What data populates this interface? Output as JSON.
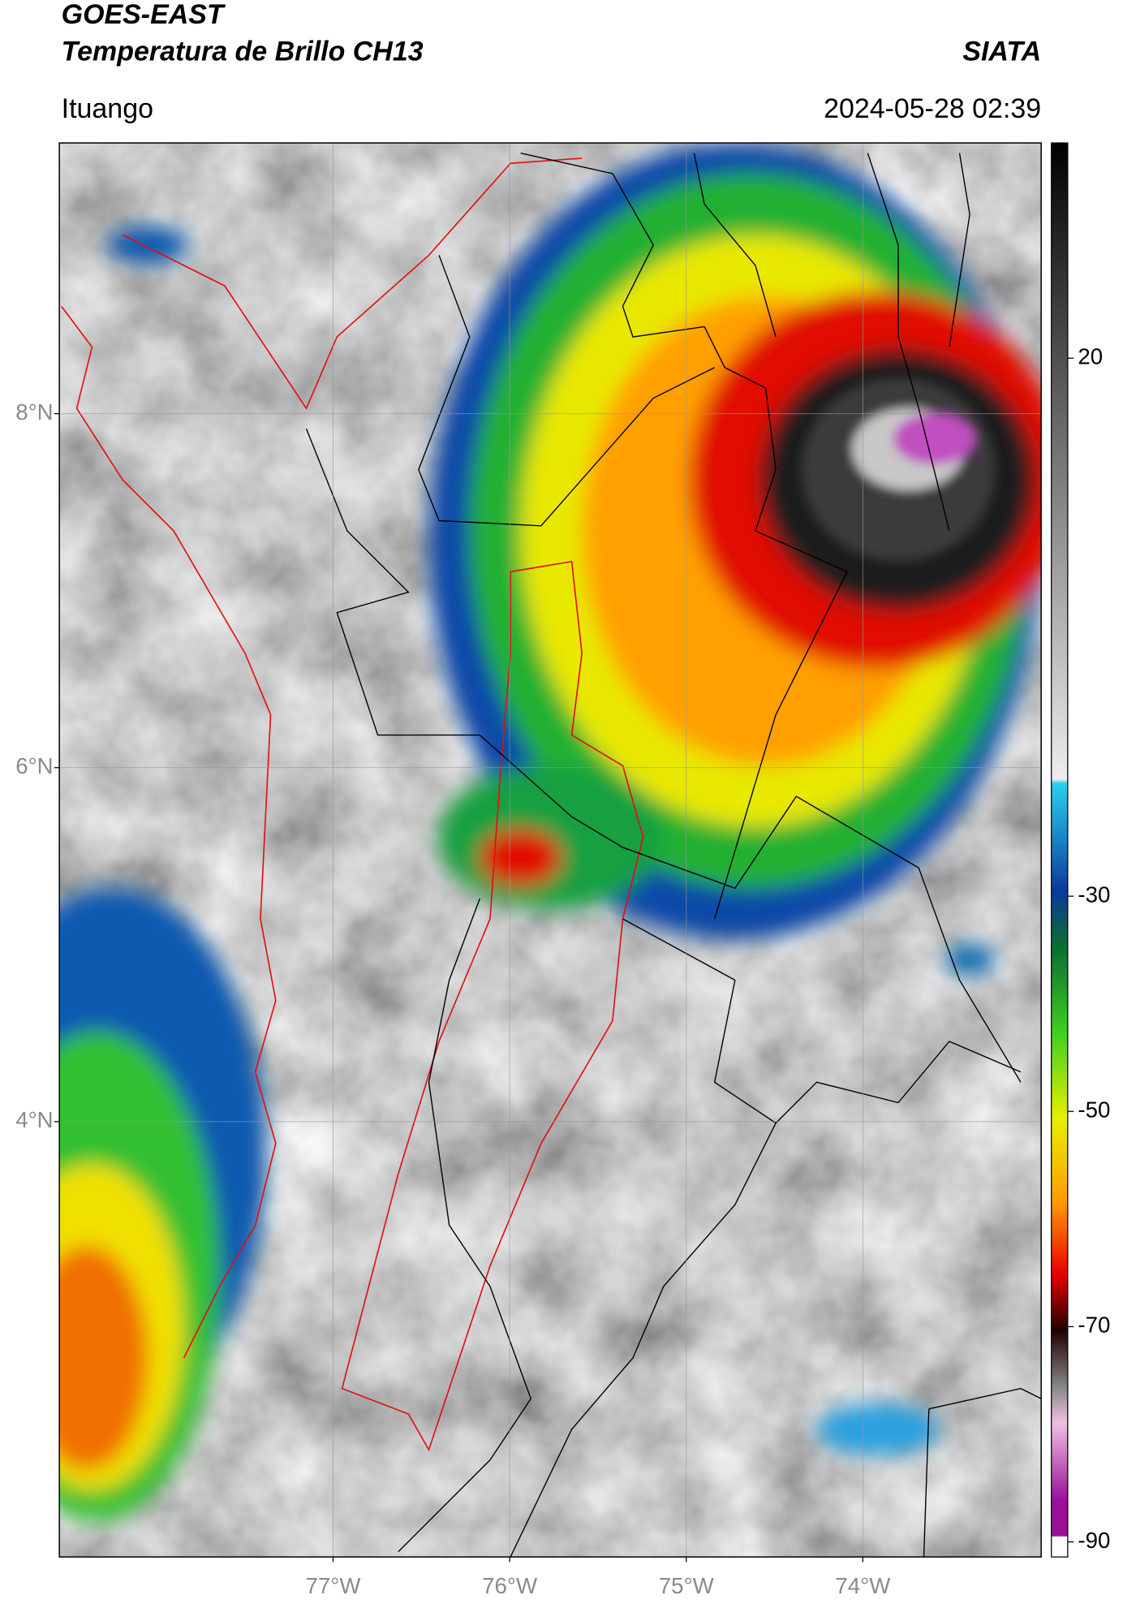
{
  "header": {
    "title": "GOES-EAST",
    "subtitle": "Temperatura de Brillo CH13",
    "source": "SIATA",
    "location": "Ituango",
    "datetime": "2024-05-28 02:39"
  },
  "map": {
    "xlim": [
      -78.55,
      -72.99
    ],
    "ylim": [
      1.54,
      9.53
    ],
    "xticks": [
      {
        "value": -77,
        "label": "77°W"
      },
      {
        "value": -76,
        "label": "76°W"
      },
      {
        "value": -75,
        "label": "75°W"
      },
      {
        "value": -74,
        "label": "74°W"
      }
    ],
    "yticks": [
      {
        "value": 8,
        "label": "8°N"
      },
      {
        "value": 6,
        "label": "6°N"
      },
      {
        "value": 4,
        "label": "4°N"
      }
    ],
    "grid": true
  },
  "colorbar": {
    "lim": [
      -91.4,
      40
    ],
    "ticks": [
      20,
      -30,
      -50,
      -70,
      -90
    ]
  }
}
